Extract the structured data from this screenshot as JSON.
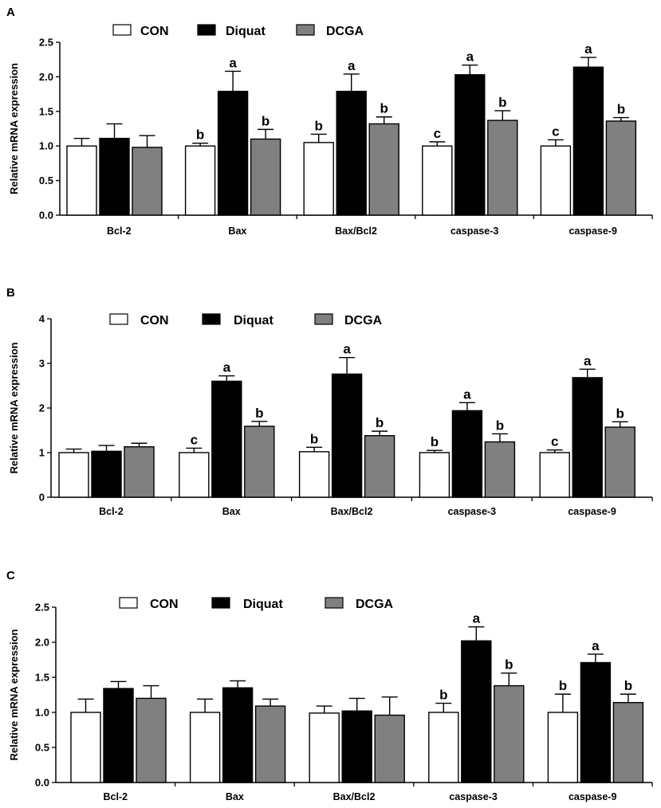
{
  "colors": {
    "CON": "#ffffff",
    "Diquat": "#000000",
    "DCGA": "#808080",
    "axis": "#000000"
  },
  "chart_data": [
    {
      "panel": "A",
      "type": "bar",
      "ylabel": "Relative mRNA expression",
      "ylim": [
        0,
        2.5
      ],
      "yticks": [
        "0.0",
        "0.5",
        "1.0",
        "1.5",
        "2.0",
        "2.5"
      ],
      "ytick_values": [
        0,
        0.5,
        1.0,
        1.5,
        2.0,
        2.5
      ],
      "legend_position": "top",
      "categories": [
        "Bcl-2",
        "Bax",
        "Bax/Bcl2",
        "caspase-3",
        "caspase-9"
      ],
      "series": [
        {
          "name": "CON",
          "values": [
            1.0,
            1.0,
            1.05,
            1.0,
            1.0
          ],
          "errors": [
            0.11,
            0.04,
            0.12,
            0.06,
            0.09
          ],
          "labels": [
            "",
            "b",
            "b",
            "c",
            "c"
          ]
        },
        {
          "name": "Diquat",
          "values": [
            1.11,
            1.79,
            1.79,
            2.03,
            2.14
          ],
          "errors": [
            0.21,
            0.29,
            0.25,
            0.14,
            0.14
          ],
          "labels": [
            "",
            "a",
            "a",
            "a",
            "a"
          ]
        },
        {
          "name": "DCGA",
          "values": [
            0.98,
            1.1,
            1.32,
            1.37,
            1.36
          ],
          "errors": [
            0.17,
            0.14,
            0.1,
            0.14,
            0.05
          ],
          "labels": [
            "",
            "b",
            "b",
            "b",
            "b"
          ]
        }
      ]
    },
    {
      "panel": "B",
      "type": "bar",
      "ylabel": "Relative mRNA expression",
      "ylim": [
        0,
        4
      ],
      "yticks": [
        "0",
        "1",
        "2",
        "3",
        "4"
      ],
      "ytick_values": [
        0,
        1,
        2,
        3,
        4
      ],
      "legend_position": "top",
      "categories": [
        "Bcl-2",
        "Bax",
        "Bax/Bcl2",
        "caspase-3",
        "caspase-9"
      ],
      "series": [
        {
          "name": "CON",
          "values": [
            1.0,
            1.0,
            1.02,
            1.0,
            1.0
          ],
          "errors": [
            0.08,
            0.1,
            0.1,
            0.05,
            0.06
          ],
          "labels": [
            "",
            "c",
            "b",
            "b",
            "c"
          ]
        },
        {
          "name": "Diquat",
          "values": [
            1.03,
            2.6,
            2.76,
            1.94,
            2.68
          ],
          "errors": [
            0.13,
            0.12,
            0.37,
            0.18,
            0.19
          ],
          "labels": [
            "",
            "a",
            "a",
            "a",
            "a"
          ]
        },
        {
          "name": "DCGA",
          "values": [
            1.13,
            1.59,
            1.38,
            1.24,
            1.57
          ],
          "errors": [
            0.08,
            0.11,
            0.1,
            0.18,
            0.12
          ],
          "labels": [
            "",
            "b",
            "b",
            "b",
            "b"
          ]
        }
      ]
    },
    {
      "panel": "C",
      "type": "bar",
      "ylabel": "Relative mRNA expression",
      "ylim": [
        0,
        2.5
      ],
      "yticks": [
        "0.0",
        "0.5",
        "1.0",
        "1.5",
        "2.0",
        "2.5"
      ],
      "ytick_values": [
        0,
        0.5,
        1.0,
        1.5,
        2.0,
        2.5
      ],
      "legend_position": "top",
      "categories": [
        "Bcl-2",
        "Bax",
        "Bax/Bcl2",
        "caspase-3",
        "caspase-9"
      ],
      "series": [
        {
          "name": "CON",
          "values": [
            1.0,
            1.0,
            0.99,
            1.0,
            1.0
          ],
          "errors": [
            0.19,
            0.19,
            0.1,
            0.13,
            0.26
          ],
          "labels": [
            "",
            "",
            "",
            "b",
            "b"
          ]
        },
        {
          "name": "Diquat",
          "values": [
            1.34,
            1.35,
            1.02,
            2.02,
            1.71
          ],
          "errors": [
            0.1,
            0.1,
            0.18,
            0.2,
            0.12
          ],
          "labels": [
            "",
            "",
            "",
            "a",
            "a"
          ]
        },
        {
          "name": "DCGA",
          "values": [
            1.2,
            1.09,
            0.96,
            1.38,
            1.14
          ],
          "errors": [
            0.18,
            0.1,
            0.26,
            0.18,
            0.12
          ],
          "labels": [
            "",
            "",
            "",
            "b",
            "b"
          ]
        }
      ]
    }
  ]
}
